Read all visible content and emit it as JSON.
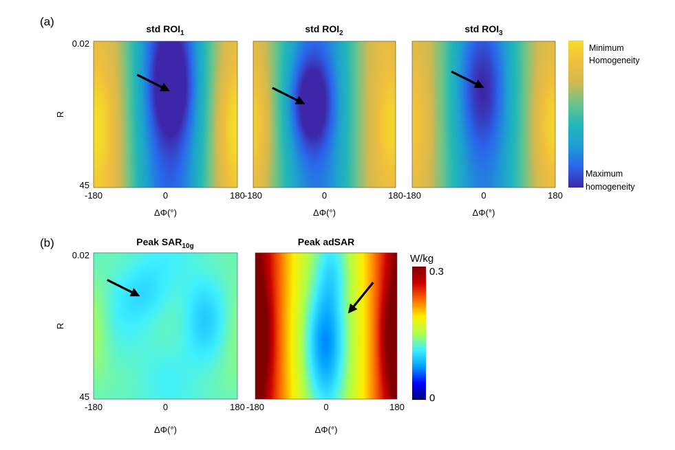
{
  "panel_labels": {
    "a": "(a)",
    "b": "(b)"
  },
  "colors": {
    "parula": [
      "#3e26a8",
      "#2a66ec",
      "#1e9ed2",
      "#21b8b8",
      "#6dc48a",
      "#d2b950",
      "#f0bf3d",
      "#f4dd28"
    ],
    "jet": [
      "#000080",
      "#0000ff",
      "#00a0ff",
      "#3ff0ff",
      "#b0ff48",
      "#ffee00",
      "#ff6a00",
      "#cc0000",
      "#800000"
    ],
    "arrow": "#000000"
  },
  "colorbar_a": {
    "top_label_1": "Minimum",
    "top_label_2": "Homogeneity",
    "bottom_label_1": "Maximum",
    "bottom_label_2": "homogeneity"
  },
  "colorbar_b": {
    "unit": "W/kg",
    "max": "0.3",
    "min": "0"
  },
  "chart_data": [
    {
      "type": "heatmap",
      "title": "std ROI",
      "title_sub": "1",
      "xlabel": "ΔΦ(°)",
      "ylabel": "R",
      "xlim": [
        -180,
        180
      ],
      "ylim": [
        0.02,
        45
      ],
      "x_ticks": [
        "-180",
        "0",
        "180"
      ],
      "y_ticks": [
        "0.02",
        "45"
      ],
      "colormap": "parula",
      "value_scale": [
        0,
        1
      ],
      "extrema": [
        {
          "kind": "min",
          "x": 15,
          "y": 14,
          "value": 0.05
        },
        {
          "kind": "max",
          "x": -175,
          "y": 26,
          "value": 0.88
        },
        {
          "kind": "max",
          "x": 180,
          "y": 26,
          "value": 0.88
        }
      ],
      "arrow_target": {
        "x": 5,
        "y": 15
      }
    },
    {
      "type": "heatmap",
      "title": "std ROI",
      "title_sub": "2",
      "xlabel": "ΔΦ(°)",
      "ylabel": "",
      "xlim": [
        -180,
        180
      ],
      "ylim": [
        0.02,
        45
      ],
      "x_ticks": [
        "-180",
        "0",
        "180"
      ],
      "y_ticks": [],
      "colormap": "parula",
      "value_scale": [
        0,
        1
      ],
      "extrema": [
        {
          "kind": "min",
          "x": -35,
          "y": 19,
          "value": 0.03
        },
        {
          "kind": "max",
          "x": -180,
          "y": 26,
          "value": 0.82
        },
        {
          "kind": "max",
          "x": 180,
          "y": 26,
          "value": 0.85
        }
      ],
      "arrow_target": {
        "x": -55,
        "y": 19
      }
    },
    {
      "type": "heatmap",
      "title": "std ROI",
      "title_sub": "3",
      "xlabel": "ΔΦ(°)",
      "ylabel": "",
      "xlim": [
        -180,
        180
      ],
      "ylim": [
        0.02,
        45
      ],
      "x_ticks": [
        "-180",
        "0",
        "180"
      ],
      "y_ticks": [],
      "colormap": "parula",
      "value_scale": [
        0,
        1
      ],
      "extrema": [
        {
          "kind": "min",
          "x": -5,
          "y": 15,
          "value": 0.18
        },
        {
          "kind": "max",
          "x": -180,
          "y": 26,
          "value": 0.78
        },
        {
          "kind": "max",
          "x": 175,
          "y": 26,
          "value": 0.84
        }
      ],
      "arrow_target": {
        "x": -5,
        "y": 14
      }
    },
    {
      "type": "heatmap",
      "title": "Peak SAR",
      "title_sub": "10g",
      "xlabel": "ΔΦ(°)",
      "ylabel": "R",
      "xlim": [
        -180,
        180
      ],
      "ylim": [
        0.02,
        45
      ],
      "x_ticks": [
        "-180",
        "0",
        "180"
      ],
      "y_ticks": [
        "0.02",
        "45"
      ],
      "colormap": "jet",
      "value_scale": [
        0,
        0.3
      ],
      "extrema": [
        {
          "kind": "min",
          "x": -55,
          "y": 12,
          "value": 0.11
        },
        {
          "kind": "min",
          "x": 95,
          "y": 21,
          "value": 0.1
        },
        {
          "kind": "max",
          "x": -180,
          "y": 24,
          "value": 0.16
        }
      ],
      "arrow_target": {
        "x": -70,
        "y": 13
      }
    },
    {
      "type": "heatmap",
      "title": "Peak adSAR",
      "title_sub": "",
      "xlabel": "ΔΦ(°)",
      "ylabel": "",
      "xlim": [
        -180,
        180
      ],
      "ylim": [
        0.02,
        45
      ],
      "x_ticks": [
        "-180",
        "0",
        "180"
      ],
      "y_ticks": [],
      "colormap": "jet",
      "value_scale": [
        0,
        0.3
      ],
      "extrema": [
        {
          "kind": "min",
          "x": 0,
          "y": 25,
          "value": 0.09
        },
        {
          "kind": "max",
          "x": -180,
          "y": 26,
          "value": 0.3
        },
        {
          "kind": "max",
          "x": 180,
          "y": 26,
          "value": 0.3
        }
      ],
      "arrow_target": {
        "x": 60,
        "y": 18
      }
    }
  ]
}
